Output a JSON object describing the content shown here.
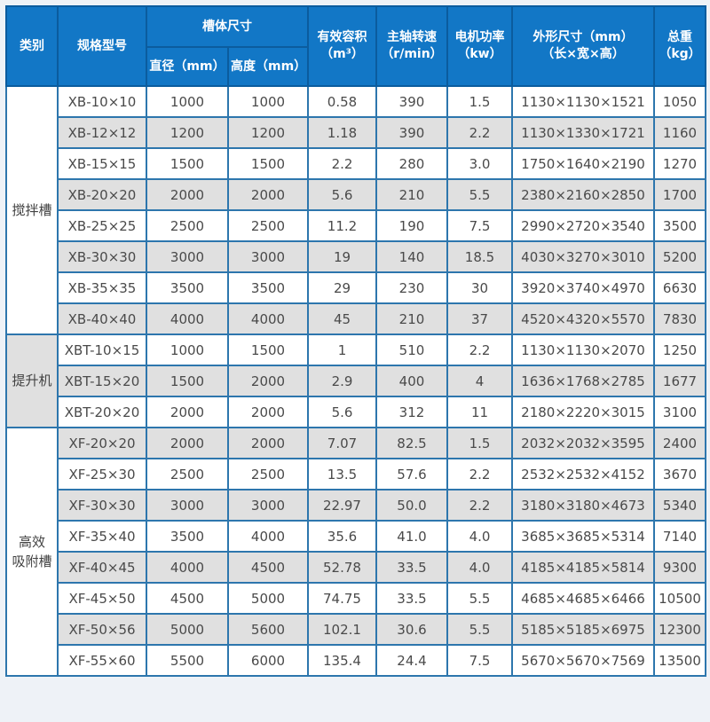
{
  "table": {
    "headers": {
      "category": "类别",
      "model": "规格型号",
      "tank_size": "槽体尺寸",
      "diameter": "直径（mm）",
      "height": "高度（mm）",
      "volume": [
        "有效容积",
        "（m³）"
      ],
      "speed": [
        "主轴转速",
        "（r/min）"
      ],
      "power": [
        "电机功率",
        "（kw）"
      ],
      "dims": [
        "外形尺寸（mm）",
        "（长×宽×高）"
      ],
      "weight": [
        "总重",
        "（kg）"
      ]
    }
  },
  "chart_data": {
    "type": "table",
    "columns": [
      "类别",
      "规格型号",
      "槽体尺寸 直径（mm）",
      "槽体尺寸 高度（mm）",
      "有效容积（m³）",
      "主轴转速（r/min）",
      "电机功率（kw）",
      "外形尺寸（mm）（长×宽×高）",
      "总重（kg）"
    ],
    "groups": [
      {
        "category": "搅拌槽",
        "category_lines": [
          "搅拌槽"
        ],
        "bg": "white",
        "rows": [
          [
            "XB-10×10",
            "1000",
            "1000",
            "0.58",
            "390",
            "1.5",
            "1130×1130×1521",
            "1050"
          ],
          [
            "XB-12×12",
            "1200",
            "1200",
            "1.18",
            "390",
            "2.2",
            "1130×1330×1721",
            "1160"
          ],
          [
            "XB-15×15",
            "1500",
            "1500",
            "2.2",
            "280",
            "3.0",
            "1750×1640×2190",
            "1270"
          ],
          [
            "XB-20×20",
            "2000",
            "2000",
            "5.6",
            "210",
            "5.5",
            "2380×2160×2850",
            "1700"
          ],
          [
            "XB-25×25",
            "2500",
            "2500",
            "11.2",
            "190",
            "7.5",
            "2990×2720×3540",
            "3500"
          ],
          [
            "XB-30×30",
            "3000",
            "3000",
            "19",
            "140",
            "18.5",
            "4030×3270×3010",
            "5200"
          ],
          [
            "XB-35×35",
            "3500",
            "3500",
            "29",
            "230",
            "30",
            "3920×3740×4970",
            "6630"
          ],
          [
            "XB-40×40",
            "4000",
            "4000",
            "45",
            "210",
            "37",
            "4520×4320×5570",
            "7830"
          ]
        ]
      },
      {
        "category": "提升机",
        "category_lines": [
          "提升机"
        ],
        "bg": "grey",
        "rows": [
          [
            "XBT-10×15",
            "1000",
            "1500",
            "1",
            "510",
            "2.2",
            "1130×1130×2070",
            "1250"
          ],
          [
            "XBT-15×20",
            "1500",
            "2000",
            "2.9",
            "400",
            "4",
            "1636×1768×2785",
            "1677"
          ],
          [
            "XBT-20×20",
            "2000",
            "2000",
            "5.6",
            "312",
            "11",
            "2180×2220×3015",
            "3100"
          ]
        ]
      },
      {
        "category": "高效吸附槽",
        "category_lines": [
          "高效",
          "吸附槽"
        ],
        "bg": "white",
        "rows": [
          [
            "XF-20×20",
            "2000",
            "2000",
            "7.07",
            "82.5",
            "1.5",
            "2032×2032×3595",
            "2400"
          ],
          [
            "XF-25×30",
            "2500",
            "2500",
            "13.5",
            "57.6",
            "2.2",
            "2532×2532×4152",
            "3670"
          ],
          [
            "XF-30×30",
            "3000",
            "3000",
            "22.97",
            "50.0",
            "2.2",
            "3180×3180×4673",
            "5340"
          ],
          [
            "XF-35×40",
            "3500",
            "4000",
            "35.6",
            "41.0",
            "4.0",
            "3685×3685×5314",
            "7140"
          ],
          [
            "XF-40×45",
            "4000",
            "4500",
            "52.78",
            "33.5",
            "4.0",
            "4185×4185×5814",
            "9300"
          ],
          [
            "XF-45×50",
            "4500",
            "5000",
            "74.75",
            "33.5",
            "5.5",
            "4685×4685×6466",
            "10500"
          ],
          [
            "XF-50×56",
            "5000",
            "5600",
            "102.1",
            "30.6",
            "5.5",
            "5185×5185×6975",
            "12300"
          ],
          [
            "XF-55×60",
            "5500",
            "6000",
            "135.4",
            "24.4",
            "7.5",
            "5670×5670×7569",
            "13500"
          ]
        ]
      }
    ],
    "colors": {
      "header_bg": "#1277c6",
      "header_border": "#0b5c9e",
      "grid_border": "#2d76ad",
      "stripe_grey": "#e0e0e0",
      "row_white": "#ffffff",
      "text": "#4a4a4a",
      "header_text": "#ffffff"
    }
  }
}
